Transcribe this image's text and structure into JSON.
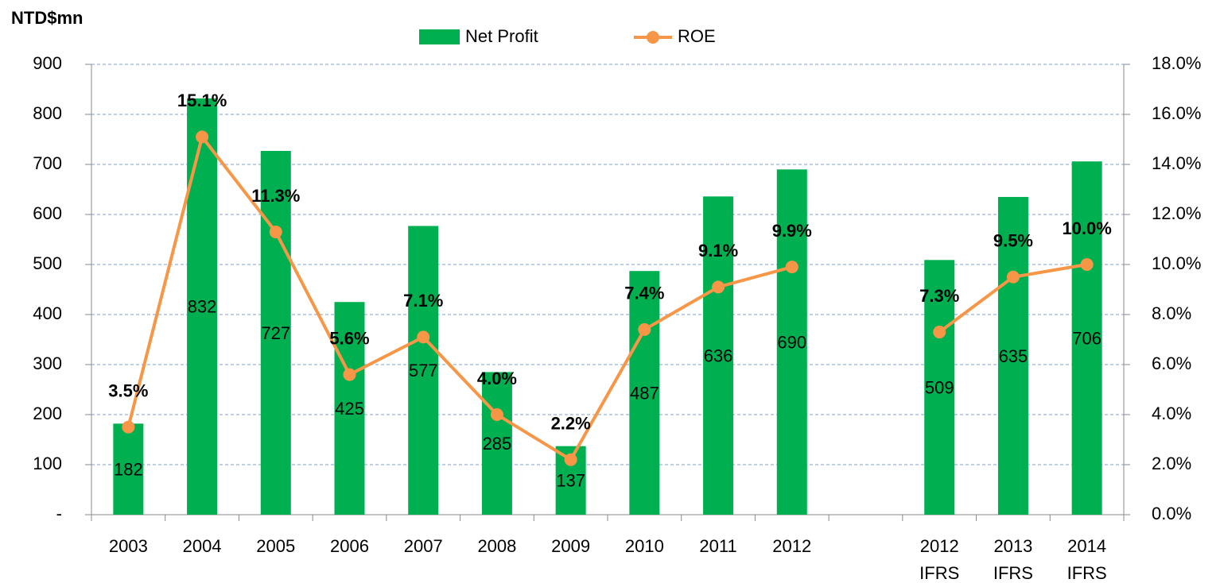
{
  "chart_data": {
    "type": "bar_line",
    "y_label": "NTD$mn",
    "categories": [
      "2003",
      "2004",
      "2005",
      "2006",
      "2007",
      "2008",
      "2009",
      "2010",
      "2011",
      "2012",
      null,
      "2012\nIFRS",
      "2013\nIFRS",
      "2014\nIFRS"
    ],
    "series": [
      {
        "name": "Net Profit",
        "type": "bar",
        "color": "#00b050",
        "values": [
          182,
          832,
          727,
          425,
          577,
          285,
          137,
          487,
          636,
          690,
          null,
          509,
          635,
          706
        ]
      },
      {
        "name": "ROE",
        "type": "line",
        "axis": "y2",
        "color": "#f79646",
        "values": [
          3.5,
          15.1,
          11.3,
          5.6,
          7.1,
          4.0,
          2.2,
          7.4,
          9.1,
          9.9,
          null,
          7.3,
          9.5,
          10.0
        ],
        "value_labels": [
          "3.5%",
          "15.1%",
          "11.3%",
          "5.6%",
          "7.1%",
          "4.0%",
          "2.2%",
          "7.4%",
          "9.1%",
          "9.9%",
          null,
          "7.3%",
          "9.5%",
          "10.0%"
        ]
      }
    ],
    "ylim": [
      0,
      900
    ],
    "yticks": [
      {
        "value": 0,
        "label": "-"
      },
      100,
      200,
      300,
      400,
      500,
      600,
      700,
      800,
      900
    ],
    "y2lim": [
      0,
      18
    ],
    "y2ticks": [
      {
        "value": 0,
        "label": "0.0%"
      },
      {
        "value": 2,
        "label": "2.0%"
      },
      {
        "value": 4,
        "label": "4.0%"
      },
      {
        "value": 6,
        "label": "6.0%"
      },
      {
        "value": 8,
        "label": "8.0%"
      },
      {
        "value": 10,
        "label": "10.0%"
      },
      {
        "value": 12,
        "label": "12.0%"
      },
      {
        "value": 14,
        "label": "14.0%"
      },
      {
        "value": 16,
        "label": "16.0%"
      },
      {
        "value": 18,
        "label": "18.0%"
      }
    ],
    "grid": true
  }
}
